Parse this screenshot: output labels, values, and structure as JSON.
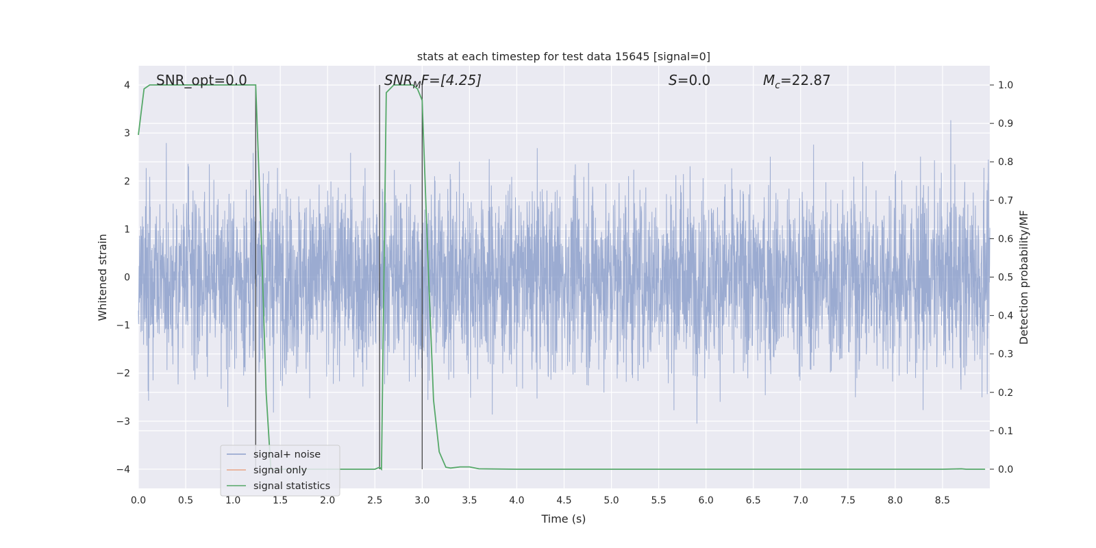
{
  "chart_data": {
    "type": "line",
    "title": "stats at each timestep for test data 15645 [signal=0]",
    "xlabel": "Time (s)",
    "ylabel_left": "Whitened strain",
    "ylabel_right": "Detection probability/MF",
    "xlim": [
      0,
      9
    ],
    "ylim_left": [
      -4.4,
      4.4
    ],
    "ylim_right": [
      -0.05,
      1.05
    ],
    "grid": true,
    "legend_position": "lower-left",
    "x_ticks": [
      "0.0",
      "0.5",
      "1.0",
      "1.5",
      "2.0",
      "2.5",
      "3.0",
      "3.5",
      "4.0",
      "4.5",
      "5.0",
      "5.5",
      "6.0",
      "6.5",
      "7.0",
      "7.5",
      "8.0",
      "8.5"
    ],
    "y_ticks_left": [
      "−4",
      "−3",
      "−2",
      "−1",
      "0",
      "1",
      "2",
      "3",
      "4"
    ],
    "y_ticks_right": [
      "0.0",
      "0.1",
      "0.2",
      "0.3",
      "0.4",
      "0.5",
      "0.6",
      "0.7",
      "0.8",
      "0.9",
      "1.0"
    ],
    "annotations": {
      "snr_opt": "SNR_opt=0.0",
      "snr_mf_sym": "SNR",
      "snr_mf_sub": "M",
      "snr_mf_rest": "F=[4.25]",
      "s_sym": "S",
      "s_rest": "=0.0",
      "mc_sym": "M",
      "mc_sub": "c",
      "mc_rest": "=22.87"
    },
    "vertical_lines_x": [
      1.24,
      2.55,
      3.0
    ],
    "series": [
      {
        "name": "signal+ noise",
        "axis": "left",
        "color": "#8da0cb",
        "kind": "noise",
        "amplitude_range": [
          -4.0,
          4.0
        ]
      },
      {
        "name": "signal only",
        "axis": "left",
        "color": "#e8a383",
        "kind": "line",
        "x": [],
        "y": []
      },
      {
        "name": "signal statistics",
        "axis": "right",
        "color": "#55a868",
        "kind": "line",
        "x": [
          0.0,
          0.06,
          0.12,
          0.25,
          0.5,
          0.75,
          1.0,
          1.2,
          1.24,
          1.3,
          1.35,
          1.4,
          1.5,
          2.0,
          2.5,
          2.55,
          2.57,
          2.62,
          2.7,
          2.8,
          2.9,
          2.95,
          3.0,
          3.06,
          3.12,
          3.18,
          3.25,
          3.3,
          3.4,
          3.5,
          3.6,
          4.0,
          5.0,
          6.0,
          7.0,
          8.0,
          8.5,
          8.7,
          8.75,
          8.95
        ],
        "y": [
          0.87,
          0.99,
          1.0,
          1.0,
          1.0,
          1.0,
          1.0,
          1.0,
          1.0,
          0.6,
          0.2,
          0.0,
          0.0,
          0.0,
          0.0,
          0.005,
          0.0,
          0.98,
          1.0,
          1.0,
          1.0,
          0.99,
          0.96,
          0.55,
          0.18,
          0.045,
          0.005,
          0.003,
          0.006,
          0.006,
          0.001,
          0.0,
          0.0,
          0.0,
          0.0,
          0.0,
          0.0,
          0.001,
          0.0,
          0.0
        ]
      }
    ]
  }
}
